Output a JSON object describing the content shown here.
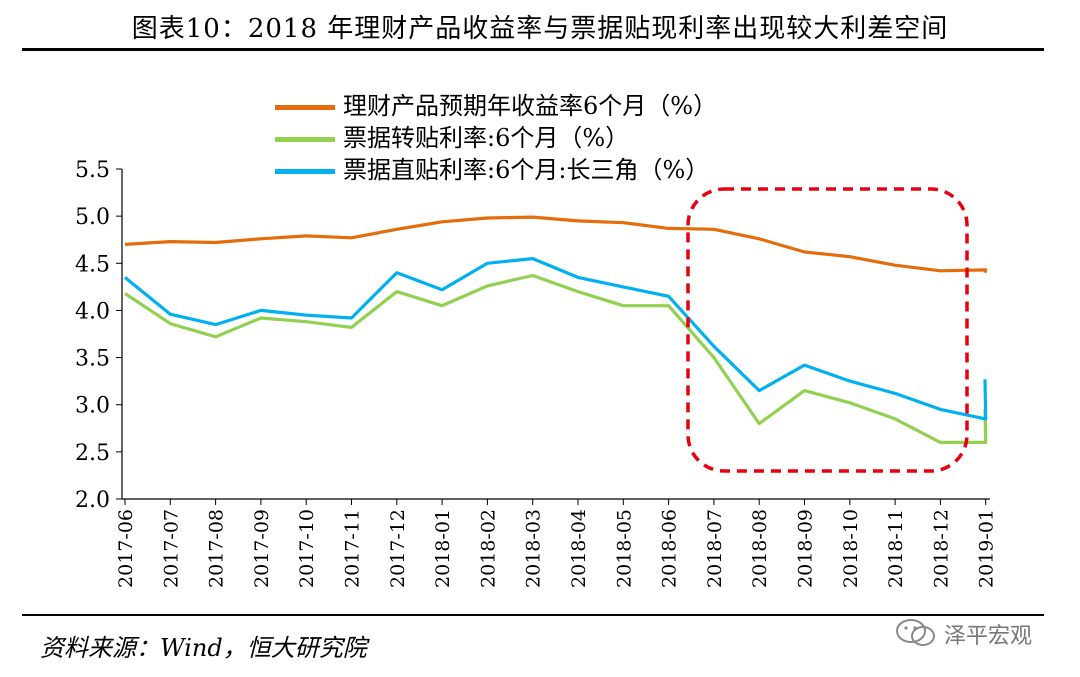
{
  "header": {
    "title": "图表10：2018 年理财产品收益率与票据贴现利率出现较大利差空间"
  },
  "footer": {
    "source": "资料来源：Wind，恒大研究院",
    "watermark": "泽平宏观"
  },
  "colors": {
    "orange": "#E46C0A",
    "green": "#92D050",
    "blue": "#00B0F0",
    "highlight": "#E8000D"
  },
  "chart_data": {
    "type": "line",
    "ylim": [
      2.0,
      5.5
    ],
    "y_ticks": [
      "5.5",
      "5.0",
      "4.5",
      "4.0",
      "3.5",
      "3.0",
      "2.5",
      "2.0"
    ],
    "x_ticks": [
      "2017-06",
      "2017-07",
      "2017-08",
      "2017-09",
      "2017-10",
      "2017-11",
      "2017-12",
      "2018-01",
      "2018-02",
      "2018-03",
      "2018-04",
      "2018-05",
      "2018-06",
      "2018-07",
      "2018-08",
      "2018-09",
      "2018-10",
      "2018-11",
      "2018-12",
      "2019-01"
    ],
    "grid": false,
    "legend_position": "top",
    "annotation": "dashed rounded rectangle highlighting 2018-07 to 2019-01",
    "x": [
      "2017-06",
      "2017-07",
      "2017-08",
      "2017-09",
      "2017-10",
      "2017-11",
      "2017-12",
      "2018-01",
      "2018-02",
      "2018-03",
      "2018-04",
      "2018-05",
      "2018-06",
      "2018-07",
      "2018-08",
      "2018-09",
      "2018-10",
      "2018-11",
      "2018-12",
      "2019-01",
      "2019-01-20"
    ],
    "series": [
      {
        "name": "理财产品预期年收益率6个月（%）",
        "color": "#E46C0A",
        "values": [
          4.7,
          4.73,
          4.72,
          4.76,
          4.79,
          4.77,
          4.86,
          4.94,
          4.98,
          4.99,
          4.95,
          4.93,
          4.87,
          4.86,
          4.76,
          4.62,
          4.57,
          4.48,
          4.42,
          4.43,
          4.4
        ]
      },
      {
        "name": "票据转贴利率:6个月（%）",
        "color": "#92D050",
        "values": [
          4.18,
          3.86,
          3.72,
          3.92,
          3.88,
          3.82,
          4.2,
          4.05,
          4.26,
          4.37,
          4.2,
          4.05,
          4.05,
          3.5,
          2.8,
          3.15,
          3.02,
          2.85,
          2.6,
          2.6,
          2.95
        ]
      },
      {
        "name": "票据直贴利率:6个月:长三角（%）",
        "color": "#00B0F0",
        "values": [
          4.35,
          3.96,
          3.85,
          4.0,
          3.95,
          3.92,
          4.4,
          4.22,
          4.5,
          4.55,
          4.35,
          4.25,
          4.15,
          3.62,
          3.15,
          3.42,
          3.25,
          3.12,
          2.95,
          2.85,
          3.27
        ]
      }
    ]
  }
}
